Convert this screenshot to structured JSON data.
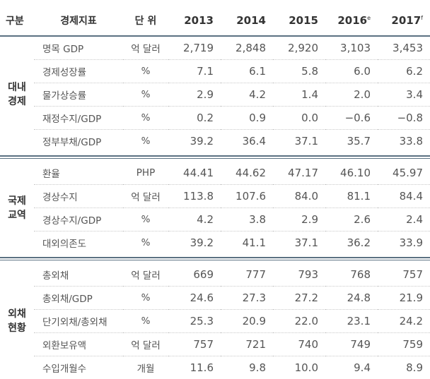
{
  "header": {
    "category": "구분",
    "indicator": "경제지표",
    "unit": "단 위",
    "years": [
      "2013",
      "2014",
      "2015",
      "2016",
      "2017"
    ],
    "year_marks": [
      "",
      "",
      "",
      "e",
      "f"
    ]
  },
  "sections": [
    {
      "group": "대내\n경제",
      "rows": [
        {
          "name": "명목 GDP",
          "unit": "억 달러",
          "values": [
            "2,719",
            "2,848",
            "2,920",
            "3,103",
            "3,453"
          ]
        },
        {
          "name": "경제성장률",
          "unit": "%",
          "values": [
            "7.1",
            "6.1",
            "5.8",
            "6.0",
            "6.2"
          ]
        },
        {
          "name": "물가상승률",
          "unit": "%",
          "values": [
            "2.9",
            "4.2",
            "1.4",
            "2.0",
            "3.4"
          ]
        },
        {
          "name": "재정수지/GDP",
          "unit": "%",
          "values": [
            "0.2",
            "0.9",
            "0.0",
            "−0.6",
            "−0.8"
          ]
        },
        {
          "name": "정부부채/GDP",
          "unit": "%",
          "values": [
            "39.2",
            "36.4",
            "37.1",
            "35.7",
            "33.8"
          ]
        }
      ]
    },
    {
      "group": "국제\n교역",
      "rows": [
        {
          "name": "환율",
          "unit": "PHP",
          "values": [
            "44.41",
            "44.62",
            "47.17",
            "46.10",
            "45.97"
          ]
        },
        {
          "name": "경상수지",
          "unit": "억 달러",
          "values": [
            "113.8",
            "107.6",
            "84.0",
            "81.1",
            "84.4"
          ]
        },
        {
          "name": "경상수지/GDP",
          "unit": "%",
          "values": [
            "4.2",
            "3.8",
            "2.9",
            "2.6",
            "2.4"
          ]
        },
        {
          "name": "대외의존도",
          "unit": "%",
          "values": [
            "39.2",
            "41.1",
            "37.1",
            "36.2",
            "33.9"
          ]
        }
      ]
    },
    {
      "group": "외채\n현황",
      "rows": [
        {
          "name": "총외채",
          "unit": "억 달러",
          "values": [
            "669",
            "777",
            "793",
            "768",
            "757"
          ]
        },
        {
          "name": "총외채/GDP",
          "unit": "%",
          "values": [
            "24.6",
            "27.3",
            "27.2",
            "24.8",
            "21.9"
          ]
        },
        {
          "name": "단기외채/총외채",
          "unit": "%",
          "values": [
            "25.3",
            "20.9",
            "22.0",
            "23.1",
            "24.2"
          ]
        },
        {
          "name": "외환보유액",
          "unit": "억 달러",
          "values": [
            "757",
            "721",
            "740",
            "749",
            "759"
          ]
        },
        {
          "name": "수입개월수",
          "unit": "개월",
          "values": [
            "11.6",
            "9.8",
            "10.0",
            "9.4",
            "8.9"
          ]
        }
      ]
    }
  ]
}
